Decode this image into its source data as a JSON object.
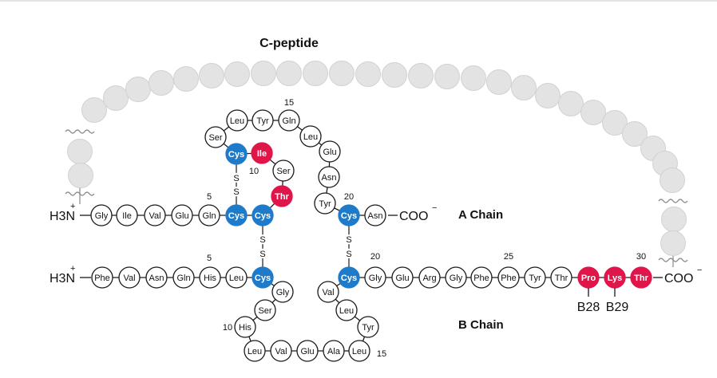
{
  "colors": {
    "cysteine": "#1e7bc9",
    "modified": "#e0154a",
    "normal": "#ffffff",
    "cpeptide": "#e3e3e3",
    "outline": "#1a1a1a"
  },
  "labels": {
    "c_peptide": "C-peptide",
    "a_chain": "A Chain",
    "b_chain": "B Chain",
    "n_terminus": "H3N",
    "plus": "+",
    "c_terminus": "COO",
    "minus": "−",
    "disulfide_atom": "S"
  },
  "a_chain": {
    "residues": [
      "Gly",
      "Ile",
      "Val",
      "Glu",
      "Gln",
      "Cys",
      "Cys",
      "Thr",
      "Ser",
      "Ile",
      "Cys",
      "Ser",
      "Leu",
      "Tyr",
      "Gln",
      "Leu",
      "Glu",
      "Asn",
      "Tyr",
      "Cys",
      "Asn"
    ],
    "numbers": [
      "5",
      "10",
      "15",
      "20"
    ]
  },
  "b_chain": {
    "residues": [
      "Phe",
      "Val",
      "Asn",
      "Gln",
      "His",
      "Leu",
      "Cys",
      "Gly",
      "Ser",
      "His",
      "Leu",
      "Val",
      "Glu",
      "Ala",
      "Leu",
      "Tyr",
      "Leu",
      "Val",
      "Cys",
      "Gly",
      "Glu",
      "Arg",
      "Gly",
      "Phe",
      "Phe",
      "Tyr",
      "Thr",
      "Pro",
      "Lys",
      "Thr"
    ],
    "numbers": [
      "5",
      "10",
      "15",
      "20",
      "25",
      "30"
    ]
  },
  "mutations": [
    "B28",
    "B29"
  ]
}
